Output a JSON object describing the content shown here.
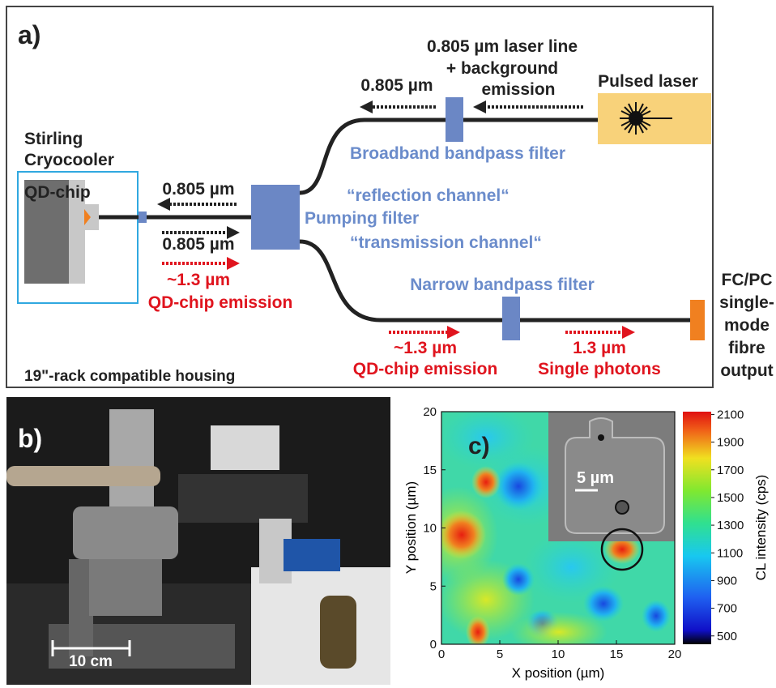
{
  "panel_a": {
    "label": "a)",
    "cryocooler": [
      "Stirling",
      "Cryocooler"
    ],
    "chip": "QD-chip",
    "left_arrow_top": "0.805 µm",
    "left_arrow_bottom": "0.805 µm",
    "emission_wavelength": "~1.3 µm",
    "emission_label": "QD-chip emission",
    "pumping_filter": "Pumping filter",
    "reflection_channel": "“reflection channel“",
    "transmission_channel": "“transmission channel“",
    "broadband_filter": "Broadband bandpass filter",
    "reflected_wavelength": "0.805 µm",
    "laser_line": [
      "0.805 µm laser line",
      "+ background",
      "emission"
    ],
    "laser": "Pulsed laser",
    "narrow_filter": "Narrow bandpass filter",
    "transmitted_wavelength": "~1.3 µm",
    "transmitted_label": "QD-chip emission",
    "output_wavelength": "1.3 µm",
    "output_label": "Single photons",
    "fibre_output": [
      "FC/PC",
      "single-",
      "mode",
      "fibre",
      "output"
    ],
    "housing": "19\"-rack compatible housing"
  },
  "panel_b": {
    "label": "b)",
    "scale_bar": "10 cm"
  },
  "panel_c": {
    "label": "c)",
    "inset_scale_bar": "5 µm",
    "chart_data": {
      "type": "heatmap",
      "xlabel": "X position (µm)",
      "ylabel": "Y position (µm)",
      "xlim": [
        0,
        20
      ],
      "ylim": [
        0,
        20
      ],
      "xticks": [
        0,
        5,
        10,
        15,
        20
      ],
      "yticks": [
        0,
        5,
        10,
        15,
        20
      ],
      "colorbar": {
        "label": "CL intensity (cps)",
        "lim": [
          440,
          2120
        ],
        "ticks": [
          500,
          700,
          900,
          1100,
          1300,
          1500,
          1700,
          1900,
          2100
        ]
      }
    }
  }
}
